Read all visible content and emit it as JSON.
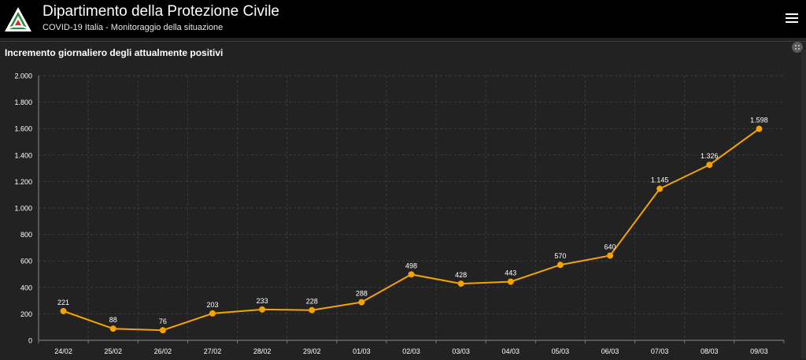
{
  "header": {
    "title": "Dipartimento della Protezione Civile",
    "subtitle": "COVID-19 Italia - Monitoraggio della situazione",
    "menu_icon": "hamburger-menu-icon",
    "logo_icon": "protezione-civile-logo"
  },
  "panel": {
    "title": "Incremento giornaliero degli attualmente positivi",
    "options_icon": "more-options-icon"
  },
  "colors": {
    "background": "#222222",
    "header": "#000000",
    "series": "#f5a300",
    "grid": "#3c3c3c",
    "text": "#ffffff"
  },
  "chart_data": {
    "type": "line",
    "title": "",
    "xlabel": "",
    "ylabel": "",
    "categories": [
      "24/02",
      "25/02",
      "26/02",
      "27/02",
      "28/02",
      "29/02",
      "01/03",
      "02/03",
      "03/03",
      "04/03",
      "05/03",
      "06/03",
      "07/03",
      "08/03",
      "09/03"
    ],
    "values": [
      221,
      88,
      76,
      203,
      233,
      228,
      288,
      498,
      428,
      443,
      570,
      640,
      1145,
      1326,
      1598
    ],
    "value_labels": [
      "221",
      "88",
      "76",
      "203",
      "233",
      "228",
      "288",
      "498",
      "428",
      "443",
      "570",
      "640",
      "1.145",
      "1.326",
      "1.598"
    ],
    "ylim": [
      0,
      2000
    ],
    "y_ticks": [
      0,
      200,
      400,
      600,
      800,
      1000,
      1200,
      1400,
      1600,
      1800,
      2000
    ],
    "y_tick_labels": [
      "0",
      "200",
      "400",
      "600",
      "800",
      "1.000",
      "1.200",
      "1.400",
      "1.600",
      "1.800",
      "2.000"
    ],
    "grid": true,
    "legend": "none"
  }
}
